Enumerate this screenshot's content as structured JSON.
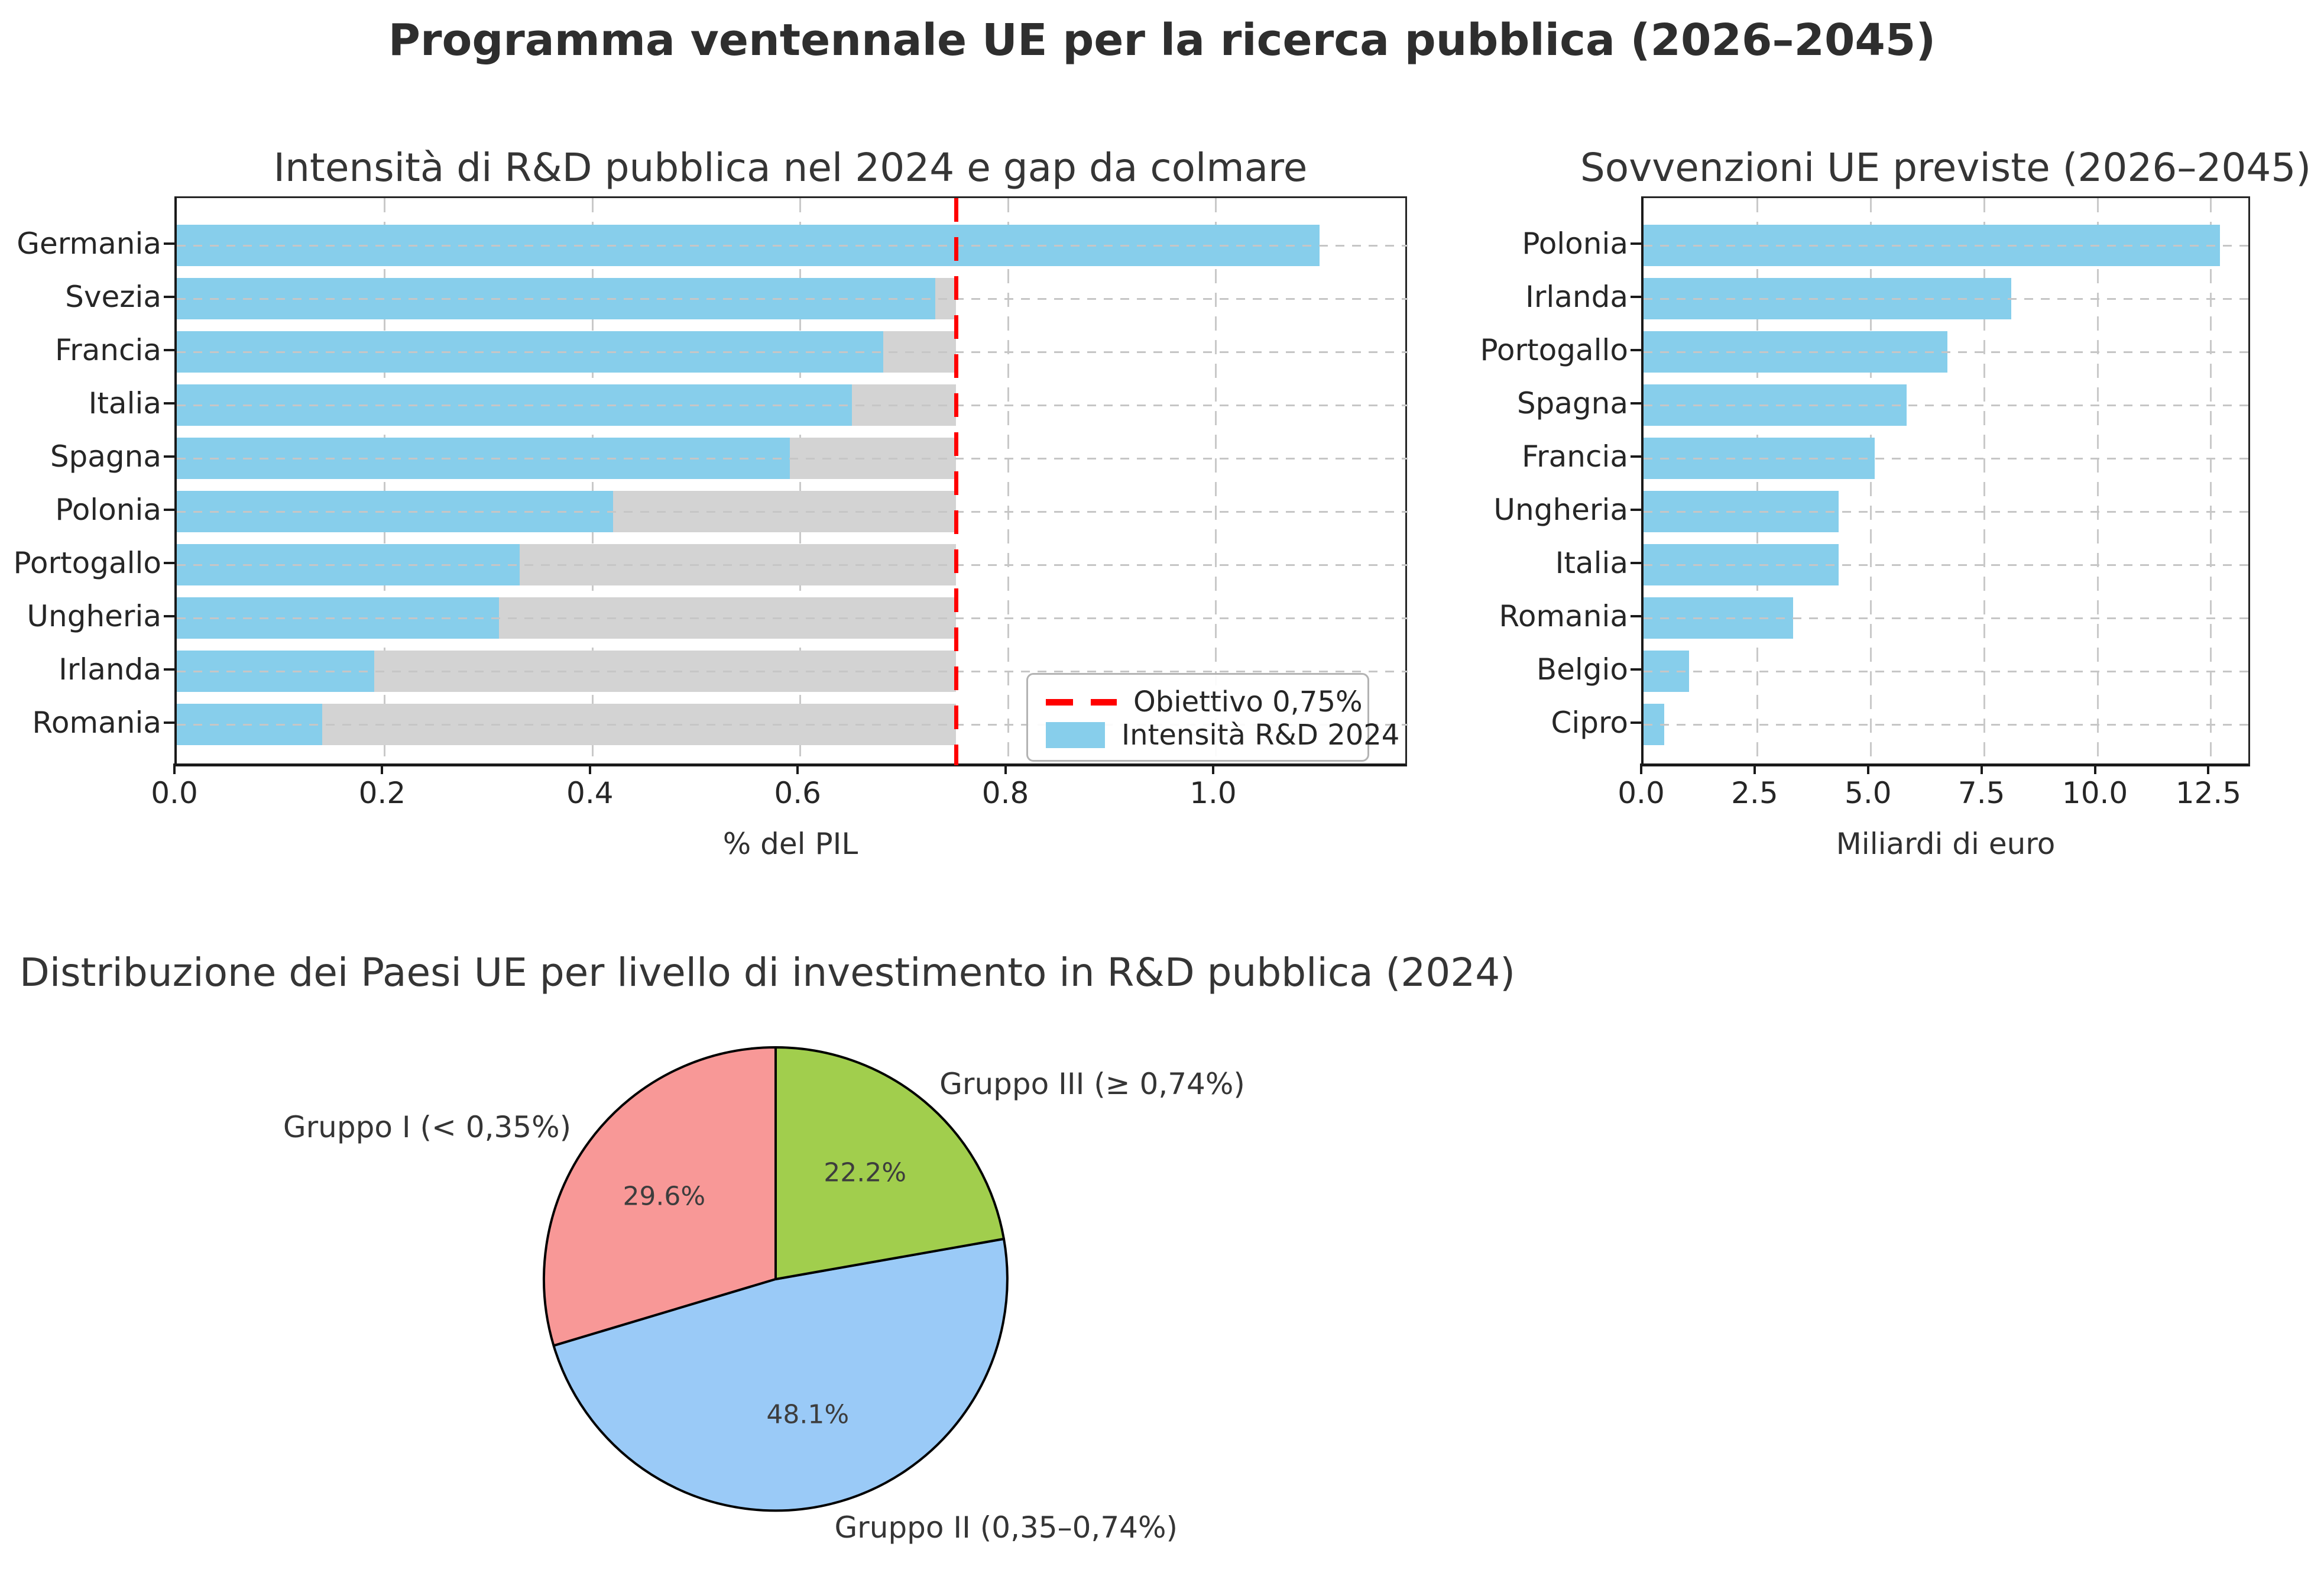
{
  "figure": {
    "title": "Programma ventennale UE per la ricerca pubblica (2026–2045)"
  },
  "colors": {
    "bar_blue": "#87CEEB",
    "gap_gray": "#D3D3D3",
    "target_red": "#FF0000",
    "grid_gray": "#C9C9C9",
    "pie_pink": "#F89897",
    "pie_blue": "#9ACAF7",
    "pie_green": "#A1CE4D",
    "pie_edge": "#000000"
  },
  "chart_data": [
    {
      "type": "bar",
      "orientation": "horizontal",
      "title": "Intensità di R&D pubblica nel 2024 e gap da colmare",
      "xlabel": "% del PIL",
      "categories": [
        "Germania",
        "Svezia",
        "Francia",
        "Italia",
        "Spagna",
        "Polonia",
        "Portogallo",
        "Ungheria",
        "Irlanda",
        "Romania"
      ],
      "series": [
        {
          "name": "Intensità R&D 2024",
          "values": [
            1.1,
            0.73,
            0.68,
            0.65,
            0.59,
            0.42,
            0.33,
            0.31,
            0.19,
            0.14
          ]
        }
      ],
      "background_bar_to_target": 0.75,
      "target": {
        "label": "Obiettivo 0,75%",
        "value": 0.75
      },
      "legend": {
        "entries": [
          "Obiettivo 0,75%",
          "Intensità R&D 2024"
        ],
        "position": "lower right"
      },
      "xlim": [
        0,
        1.185
      ],
      "xticks": {
        "values": [
          0.0,
          0.2,
          0.4,
          0.6,
          0.8,
          1.0
        ],
        "labels": [
          "0.0",
          "0.2",
          "0.4",
          "0.6",
          "0.8",
          "1.0"
        ]
      },
      "grid": true
    },
    {
      "type": "bar",
      "orientation": "horizontal",
      "title": "Sovvenzioni UE previste (2026–2045)",
      "xlabel": "Miliardi di euro",
      "categories": [
        "Polonia",
        "Irlanda",
        "Portogallo",
        "Spagna",
        "Francia",
        "Ungheria",
        "Italia",
        "Romania",
        "Belgio",
        "Cipro"
      ],
      "series": [
        {
          "name": "Sovvenzioni UE",
          "values": [
            12.7,
            8.1,
            6.7,
            5.8,
            5.1,
            4.3,
            4.3,
            3.3,
            1.0,
            0.45
          ]
        }
      ],
      "xlim": [
        0,
        13.38
      ],
      "xticks": {
        "values": [
          0.0,
          2.5,
          5.0,
          7.5,
          10.0,
          12.5
        ],
        "labels": [
          "0.0",
          "2.5",
          "5.0",
          "7.5",
          "10.0",
          "12.5"
        ]
      },
      "grid": true
    },
    {
      "type": "pie",
      "title": "Distribuzione dei Paesi UE per livello di investimento in R&D pubblica (2024)",
      "labels": [
        "Gruppo I (< 0,35%)",
        "Gruppo II (0,35–0,74%)",
        "Gruppo III (≥ 0,74%)"
      ],
      "values": [
        29.6,
        48.1,
        22.2
      ],
      "pct_labels": [
        "29.6%",
        "48.1%",
        "22.2%"
      ],
      "slice_colors": [
        "#F89897",
        "#9ACAF7",
        "#A1CE4D"
      ],
      "start_angle": 90,
      "counterclock": true,
      "label_distance": 1.1,
      "pct_distance": 0.6
    }
  ]
}
